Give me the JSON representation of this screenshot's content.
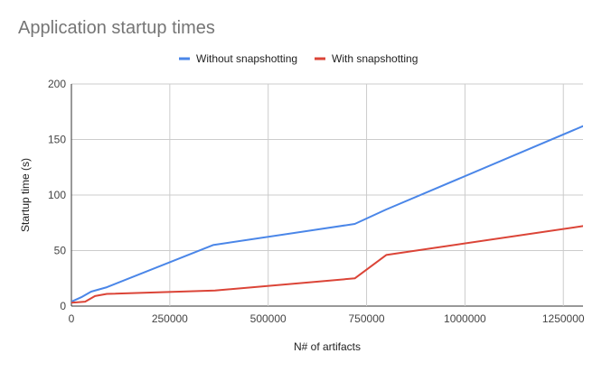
{
  "chart_data": {
    "type": "line",
    "title": "Application startup times",
    "xlabel": "N# of artifacts",
    "ylabel": "Startup time (s)",
    "xlim": [
      0,
      1300000
    ],
    "ylim": [
      0,
      200
    ],
    "x_ticks": [
      0,
      250000,
      500000,
      750000,
      1000000,
      1250000
    ],
    "y_ticks": [
      0,
      50,
      100,
      150,
      200
    ],
    "grid": true,
    "legend_position": "top",
    "series": [
      {
        "name": "Without snapshotting",
        "color": "#4a86e8",
        "points": [
          [
            0,
            4
          ],
          [
            25000,
            8
          ],
          [
            50000,
            13
          ],
          [
            90000,
            17
          ],
          [
            360000,
            55
          ],
          [
            720000,
            74
          ],
          [
            800000,
            87
          ],
          [
            1300000,
            162
          ]
        ]
      },
      {
        "name": "With snapshotting",
        "color": "#db4437",
        "points": [
          [
            0,
            3
          ],
          [
            35000,
            4
          ],
          [
            60000,
            9
          ],
          [
            90000,
            11
          ],
          [
            365000,
            14
          ],
          [
            720000,
            25
          ],
          [
            800000,
            46
          ],
          [
            1300000,
            72
          ]
        ]
      }
    ]
  }
}
